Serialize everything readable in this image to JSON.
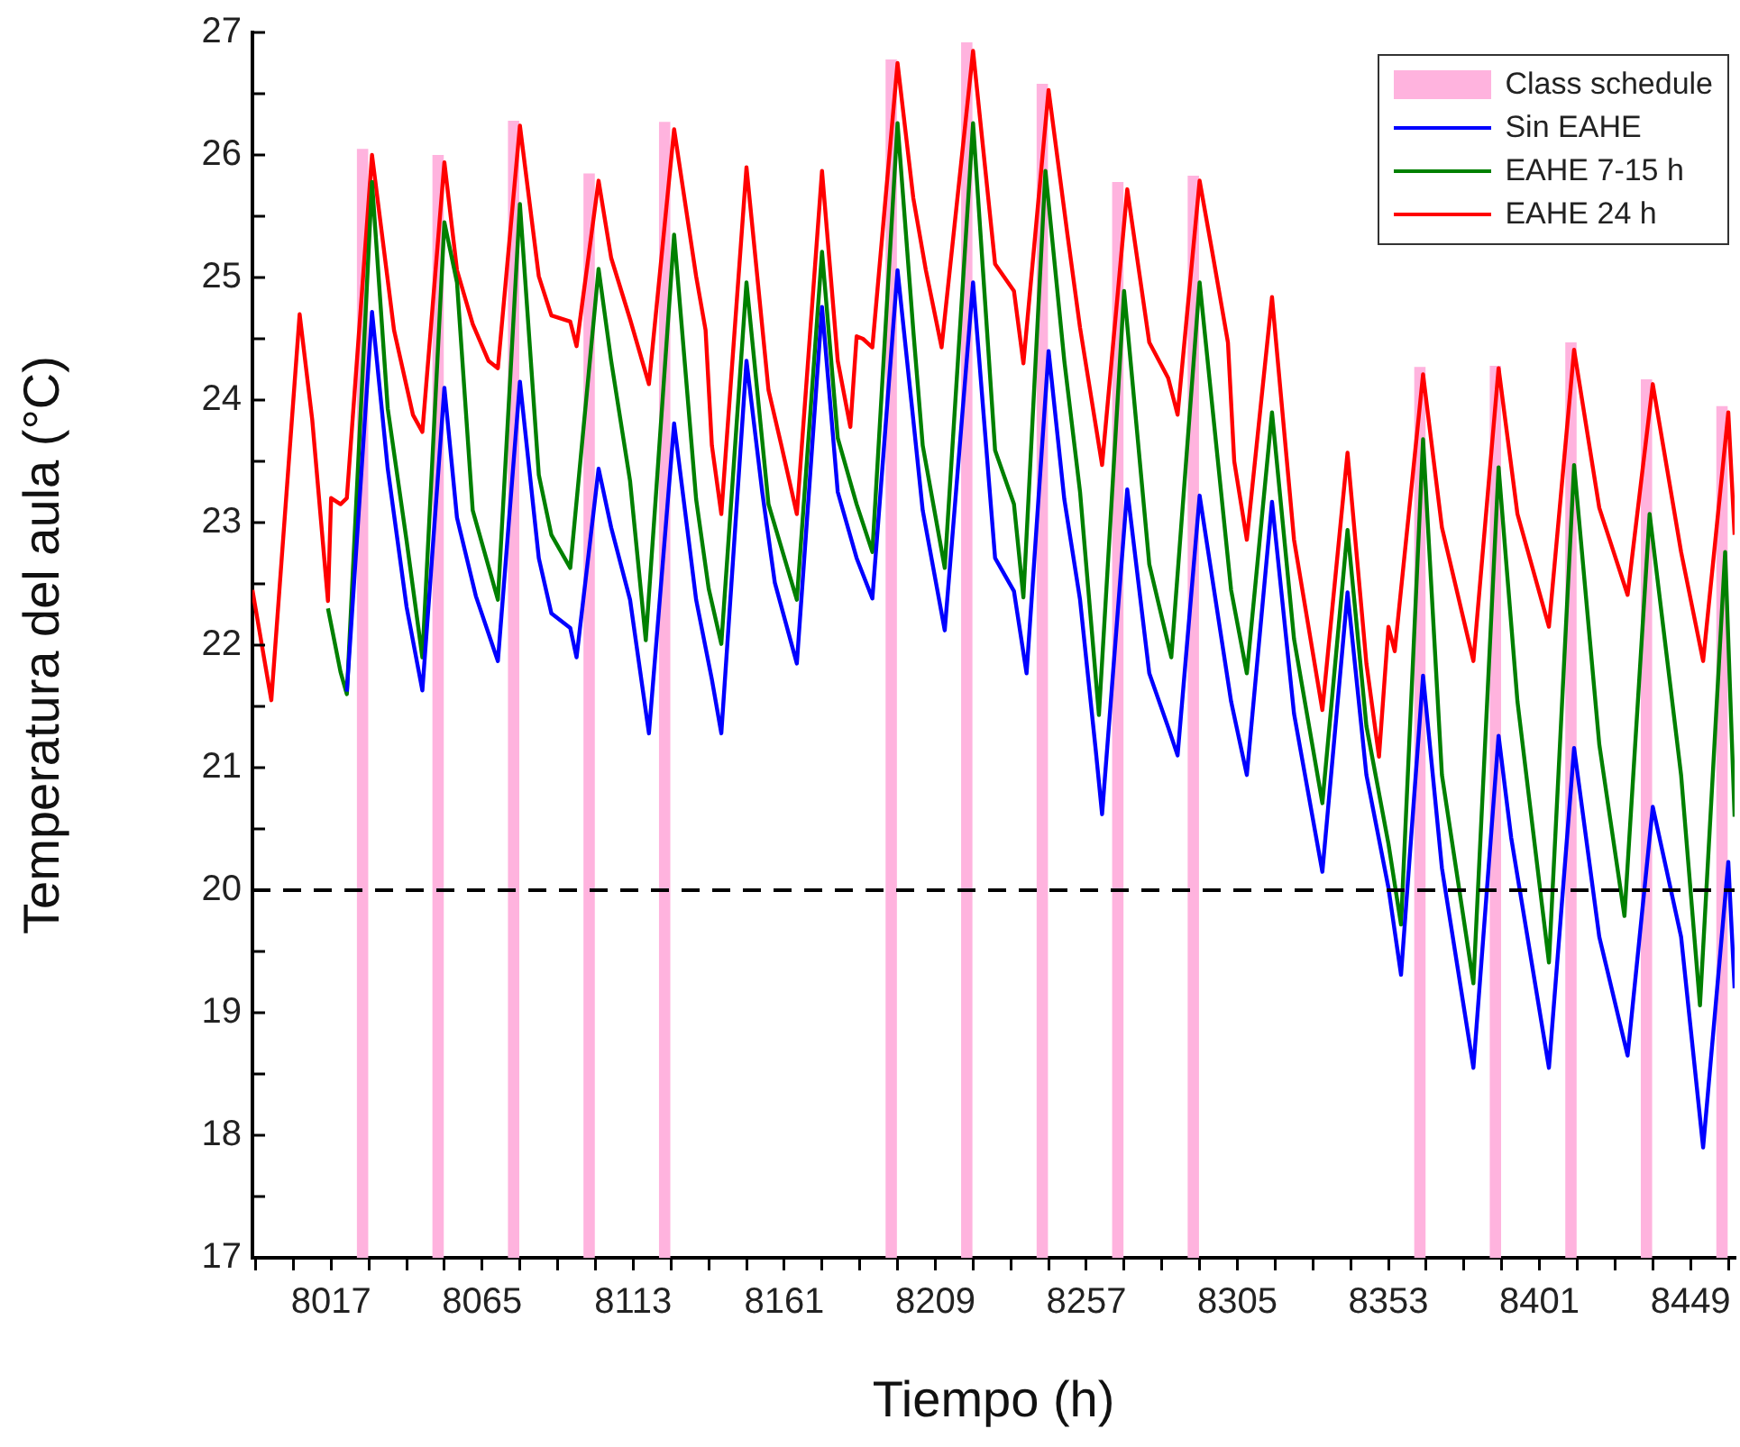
{
  "chart_data": {
    "type": "line",
    "xlabel": "Tiempo (h)",
    "ylabel": "Temperatura del aula (°C)",
    "xlim": [
      7992,
      8463
    ],
    "xticks": [
      {
        "value": 7993,
        "label": null
      },
      {
        "value": 8005,
        "label": null
      },
      8017,
      {
        "value": 8029,
        "label": null
      },
      {
        "value": 8041,
        "label": null
      },
      {
        "value": 8053,
        "label": null
      },
      8065,
      {
        "value": 8077,
        "label": null
      },
      {
        "value": 8089,
        "label": null
      },
      {
        "value": 8101,
        "label": null
      },
      8113,
      {
        "value": 8125,
        "label": null
      },
      {
        "value": 8137,
        "label": null
      },
      {
        "value": 8149,
        "label": null
      },
      8161,
      {
        "value": 8173,
        "label": null
      },
      {
        "value": 8185,
        "label": null
      },
      {
        "value": 8197,
        "label": null
      },
      8209,
      {
        "value": 8221,
        "label": null
      },
      {
        "value": 8233,
        "label": null
      },
      {
        "value": 8245,
        "label": null
      },
      8257,
      {
        "value": 8269,
        "label": null
      },
      {
        "value": 8281,
        "label": null
      },
      {
        "value": 8293,
        "label": null
      },
      8305,
      {
        "value": 8317,
        "label": null
      },
      {
        "value": 8329,
        "label": null
      },
      {
        "value": 8341,
        "label": null
      },
      8353,
      {
        "value": 8365,
        "label": null
      },
      {
        "value": 8377,
        "label": null
      },
      {
        "value": 8389,
        "label": null
      },
      8401,
      {
        "value": 8413,
        "label": null
      },
      {
        "value": 8425,
        "label": null
      },
      {
        "value": 8437,
        "label": null
      },
      8449,
      {
        "value": 8461,
        "label": null
      }
    ],
    "ylim": [
      17,
      27
    ],
    "yticks": [
      17,
      {
        "value": 17.5,
        "label": null
      },
      18,
      {
        "value": 18.5,
        "label": null
      },
      19,
      {
        "value": 19.5,
        "label": null
      },
      20,
      {
        "value": 20.5,
        "label": null
      },
      21,
      {
        "value": 21.5,
        "label": null
      },
      22,
      {
        "value": 22.5,
        "label": null
      },
      23,
      {
        "value": 23.5,
        "label": null
      },
      24,
      {
        "value": 24.5,
        "label": null
      },
      25,
      {
        "value": 25.5,
        "label": null
      },
      26,
      {
        "value": 26.5,
        "label": null
      },
      27
    ],
    "grid": false,
    "legend": "top right",
    "ref_lines": [
      {
        "axis": "y",
        "value": 20,
        "color": "#000000",
        "line_style": "dashed"
      }
    ],
    "series": [
      {
        "name": "Class schedule",
        "type": "bar",
        "color": "#ffb3de",
        "x": [
          8027,
          8051,
          8075,
          8099,
          8123,
          8195,
          8219,
          8243,
          8267,
          8291,
          8363,
          8387,
          8411,
          8435,
          8459
        ],
        "values": [
          26.05,
          26.0,
          26.28,
          25.85,
          26.27,
          26.78,
          26.92,
          26.58,
          25.78,
          25.83,
          24.27,
          24.28,
          24.47,
          24.17,
          23.95
        ]
      },
      {
        "name": "Sin EAHE",
        "color": "#0000ff",
        "x": [
          8022,
          8030,
          8035,
          8041,
          8046,
          8053,
          8057,
          8063,
          8070,
          8077,
          8083,
          8087,
          8093,
          8095,
          8102,
          8106,
          8112,
          8118,
          8126,
          8133,
          8138,
          8141,
          8149,
          8154,
          8158,
          8165,
          8173,
          8178,
          8184,
          8189,
          8197,
          8202,
          8205,
          8212,
          8221,
          8228,
          8234,
          8238,
          8245,
          8250,
          8255,
          8260,
          8262,
          8270,
          8277,
          8283,
          8286,
          8293,
          8303,
          8308,
          8316,
          8323,
          8332,
          8340,
          8346,
          8353,
          8357,
          8364,
          8370,
          8380,
          8388,
          8392,
          8404,
          8412,
          8420,
          8429,
          8437,
          8446,
          8453,
          8461,
          8463
        ],
        "values": [
          21.62,
          24.72,
          23.44,
          22.31,
          21.63,
          24.1,
          23.04,
          22.4,
          21.87,
          24.15,
          22.71,
          22.26,
          22.14,
          21.9,
          23.44,
          22.96,
          22.37,
          21.28,
          23.81,
          22.37,
          21.72,
          21.28,
          24.32,
          23.25,
          22.51,
          21.85,
          24.76,
          23.25,
          22.71,
          22.38,
          25.06,
          23.84,
          23.1,
          22.12,
          24.96,
          22.71,
          22.44,
          21.77,
          24.4,
          23.19,
          22.37,
          21.14,
          20.62,
          23.27,
          21.77,
          21.33,
          21.1,
          23.22,
          21.54,
          20.94,
          23.17,
          21.44,
          20.15,
          22.43,
          20.94,
          20.02,
          19.31,
          21.75,
          20.18,
          18.55,
          21.26,
          20.43,
          18.55,
          21.16,
          19.62,
          18.65,
          20.68,
          19.62,
          17.9,
          20.23,
          19.2
        ]
      },
      {
        "name": "EAHE 7-15 h",
        "color": "#008000",
        "x": [
          8016,
          8020,
          8022,
          8030,
          8035,
          8041,
          8046,
          8053,
          8057,
          8062,
          8070,
          8077,
          8083,
          8087,
          8093,
          8102,
          8106,
          8112,
          8117,
          8126,
          8133,
          8137,
          8141,
          8149,
          8156,
          8165,
          8173,
          8178,
          8184,
          8189,
          8197,
          8202,
          8205,
          8212,
          8221,
          8228,
          8234,
          8237,
          8244,
          8250,
          8255,
          8261,
          8269,
          8277,
          8284,
          8293,
          8303,
          8308,
          8316,
          8323,
          8332,
          8340,
          8346,
          8353,
          8357,
          8364,
          8370,
          8380,
          8388,
          8394,
          8404,
          8412,
          8420,
          8428,
          8436,
          8446,
          8452,
          8460,
          8463
        ],
        "values": [
          22.3,
          21.78,
          21.6,
          25.78,
          23.93,
          22.85,
          21.9,
          25.45,
          24.96,
          23.1,
          22.37,
          25.6,
          23.39,
          22.9,
          22.63,
          25.07,
          24.32,
          23.34,
          22.04,
          25.35,
          23.19,
          22.46,
          22.01,
          24.96,
          23.15,
          22.37,
          25.21,
          23.69,
          23.15,
          22.76,
          26.26,
          24.57,
          23.63,
          22.63,
          26.26,
          23.59,
          23.15,
          22.39,
          25.87,
          24.32,
          23.25,
          21.43,
          24.89,
          22.66,
          21.9,
          24.96,
          22.45,
          21.77,
          23.9,
          22.05,
          20.71,
          22.94,
          21.34,
          20.38,
          19.72,
          23.68,
          20.94,
          19.24,
          23.45,
          21.54,
          19.41,
          23.47,
          21.19,
          19.79,
          23.07,
          20.94,
          19.06,
          22.76,
          20.6
        ]
      },
      {
        "name": "EAHE 24 h",
        "color": "#ff0000",
        "x": [
          7992,
          7998,
          8007,
          8011,
          8016,
          8017,
          8020,
          8022,
          8030,
          8037,
          8043,
          8046,
          8053,
          8057,
          8062,
          8067,
          8070,
          8077,
          8083,
          8087,
          8093,
          8095,
          8102,
          8106,
          8112,
          8118,
          8126,
          8133,
          8136,
          8138,
          8141,
          8149,
          8156,
          8160,
          8165,
          8173,
          8178,
          8182,
          8184,
          8186,
          8189,
          8197,
          8202,
          8206,
          8211,
          8221,
          8228,
          8234,
          8237,
          8245,
          8251,
          8255,
          8262,
          8270,
          8277,
          8283,
          8286,
          8293,
          8297,
          8302,
          8304,
          8308,
          8316,
          8323,
          8332,
          8340,
          8346,
          8350,
          8353,
          8355,
          8364,
          8370,
          8380,
          8388,
          8394,
          8404,
          8412,
          8420,
          8429,
          8437,
          8446,
          8453,
          8461,
          8463
        ],
        "values": [
          22.45,
          21.55,
          24.7,
          23.84,
          22.36,
          23.2,
          23.15,
          23.2,
          26.0,
          24.57,
          23.88,
          23.74,
          25.94,
          25.06,
          24.62,
          24.32,
          24.26,
          26.24,
          25.01,
          24.69,
          24.64,
          24.44,
          25.79,
          25.16,
          24.66,
          24.13,
          26.21,
          25.01,
          24.57,
          23.63,
          23.07,
          25.9,
          24.08,
          23.64,
          23.07,
          25.87,
          24.32,
          23.78,
          24.52,
          24.5,
          24.43,
          26.75,
          25.65,
          25.06,
          24.43,
          26.85,
          25.11,
          24.89,
          24.3,
          26.53,
          25.35,
          24.59,
          23.47,
          25.72,
          24.47,
          24.18,
          23.88,
          25.79,
          25.21,
          24.47,
          23.5,
          22.86,
          24.84,
          22.86,
          21.47,
          23.57,
          21.85,
          21.09,
          22.15,
          21.95,
          24.21,
          22.96,
          21.87,
          24.26,
          23.07,
          22.15,
          24.41,
          23.12,
          22.41,
          24.13,
          22.76,
          21.87,
          23.9,
          22.9
        ]
      }
    ]
  }
}
